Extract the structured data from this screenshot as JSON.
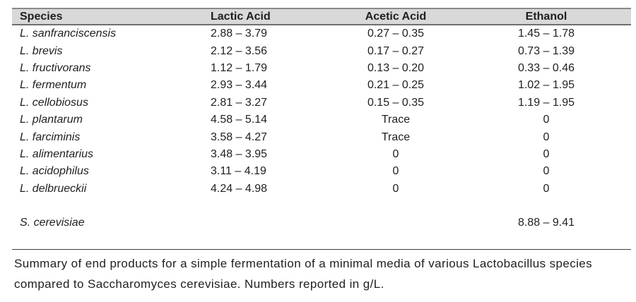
{
  "table": {
    "headers": {
      "species": "Species",
      "lactic": "Lactic Acid",
      "acetic": "Acetic Acid",
      "ethanol": "Ethanol"
    },
    "rows": [
      {
        "species": "L. sanfranciscensis",
        "lactic": "2.88 – 3.79",
        "acetic": "0.27 – 0.35",
        "ethanol": "1.45 – 1.78"
      },
      {
        "species": "L. brevis",
        "lactic": "2.12 – 3.56",
        "acetic": "0.17 – 0.27",
        "ethanol": "0.73 – 1.39"
      },
      {
        "species": "L. fructivorans",
        "lactic": "1.12 – 1.79",
        "acetic": "0.13 – 0.20",
        "ethanol": "0.33 – 0.46"
      },
      {
        "species": "L. fermentum",
        "lactic": "2.93 – 3.44",
        "acetic": "0.21 – 0.25",
        "ethanol": "1.02 – 1.95"
      },
      {
        "species": "L. cellobiosus",
        "lactic": "2.81 – 3.27",
        "acetic": "0.15 – 0.35",
        "ethanol": "1.19 – 1.95"
      },
      {
        "species": "L. plantarum",
        "lactic": "4.58 – 5.14",
        "acetic": "Trace",
        "ethanol": "0"
      },
      {
        "species": "L. farciminis",
        "lactic": "3.58 – 4.27",
        "acetic": "Trace",
        "ethanol": "0"
      },
      {
        "species": "L. alimentarius",
        "lactic": "3.48 – 3.95",
        "acetic": "0",
        "ethanol": "0"
      },
      {
        "species": "L. acidophilus",
        "lactic": "3.11 – 4.19",
        "acetic": "0",
        "ethanol": "0"
      },
      {
        "species": "L. delbrueckii",
        "lactic": "4.24 – 4.98",
        "acetic": "0",
        "ethanol": "0"
      },
      {
        "species": "",
        "lactic": "",
        "acetic": "",
        "ethanol": ""
      },
      {
        "species": "S. cerevisiae",
        "lactic": "",
        "acetic": "",
        "ethanol": "8.88 – 9.41"
      },
      {
        "species": "",
        "lactic": "",
        "acetic": "",
        "ethanol": ""
      }
    ]
  },
  "caption": {
    "line1": "Summary of end products for a simple fermentation of a minimal media of various Lactobacillus species",
    "line2": "compared to Saccharomyces cerevisiae. Numbers reported in g/L."
  },
  "colors": {
    "header_fill": "#d9d9d9",
    "top_border": "#8a8a8a",
    "header_underline": "#6f6f6f",
    "bottom_rule": "#3d3d3d",
    "text": "#1f1f1f"
  },
  "units_note": "g/L"
}
